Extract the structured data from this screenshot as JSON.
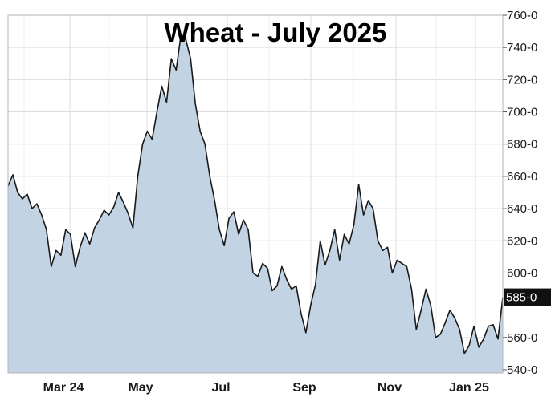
{
  "chart_data": {
    "type": "area",
    "title": "Wheat - July 2025",
    "xlabel": "",
    "ylabel": "",
    "x_tick_labels": [
      "Mar 24",
      "May",
      "Jul",
      "Sep",
      "Nov",
      "Jan 25"
    ],
    "y_tick_labels": [
      "540-0",
      "560-0",
      "600-0",
      "620-0",
      "640-0",
      "660-0",
      "680-0",
      "700-0",
      "720-0",
      "740-0",
      "760-0"
    ],
    "y_ticks": [
      540,
      560,
      600,
      620,
      640,
      660,
      680,
      700,
      720,
      740,
      760
    ],
    "ylim": [
      538,
      760
    ],
    "last_value_label": "585-0",
    "last_value": 585,
    "grid": true,
    "legend": "none",
    "colors": {
      "fill": "#c2d4e3",
      "line": "#1a1a1a",
      "grid": "#dcdcdc",
      "badge": "#111111"
    },
    "series": [
      {
        "values": [
          654,
          661,
          650,
          646,
          649,
          640,
          643,
          636,
          627,
          604,
          614,
          611,
          627,
          624,
          604,
          616,
          625,
          618,
          628,
          633,
          639,
          636,
          641,
          650,
          644,
          637,
          628,
          660,
          680,
          688,
          683,
          700,
          716,
          706,
          733,
          726,
          748,
          745,
          733,
          705,
          688,
          680,
          660,
          645,
          627,
          617,
          634,
          638,
          624,
          633,
          627,
          600,
          598,
          606,
          603,
          589,
          592,
          604,
          596,
          590,
          592,
          575,
          563,
          580,
          593,
          620,
          605,
          614,
          627,
          608,
          624,
          618,
          630,
          655,
          636,
          645,
          640,
          620,
          614,
          616,
          600,
          608,
          606,
          604,
          590,
          565,
          577,
          590,
          580,
          560,
          562,
          569,
          577,
          572,
          565,
          550,
          555,
          567,
          554,
          559,
          567,
          568,
          559,
          585
        ]
      }
    ]
  }
}
